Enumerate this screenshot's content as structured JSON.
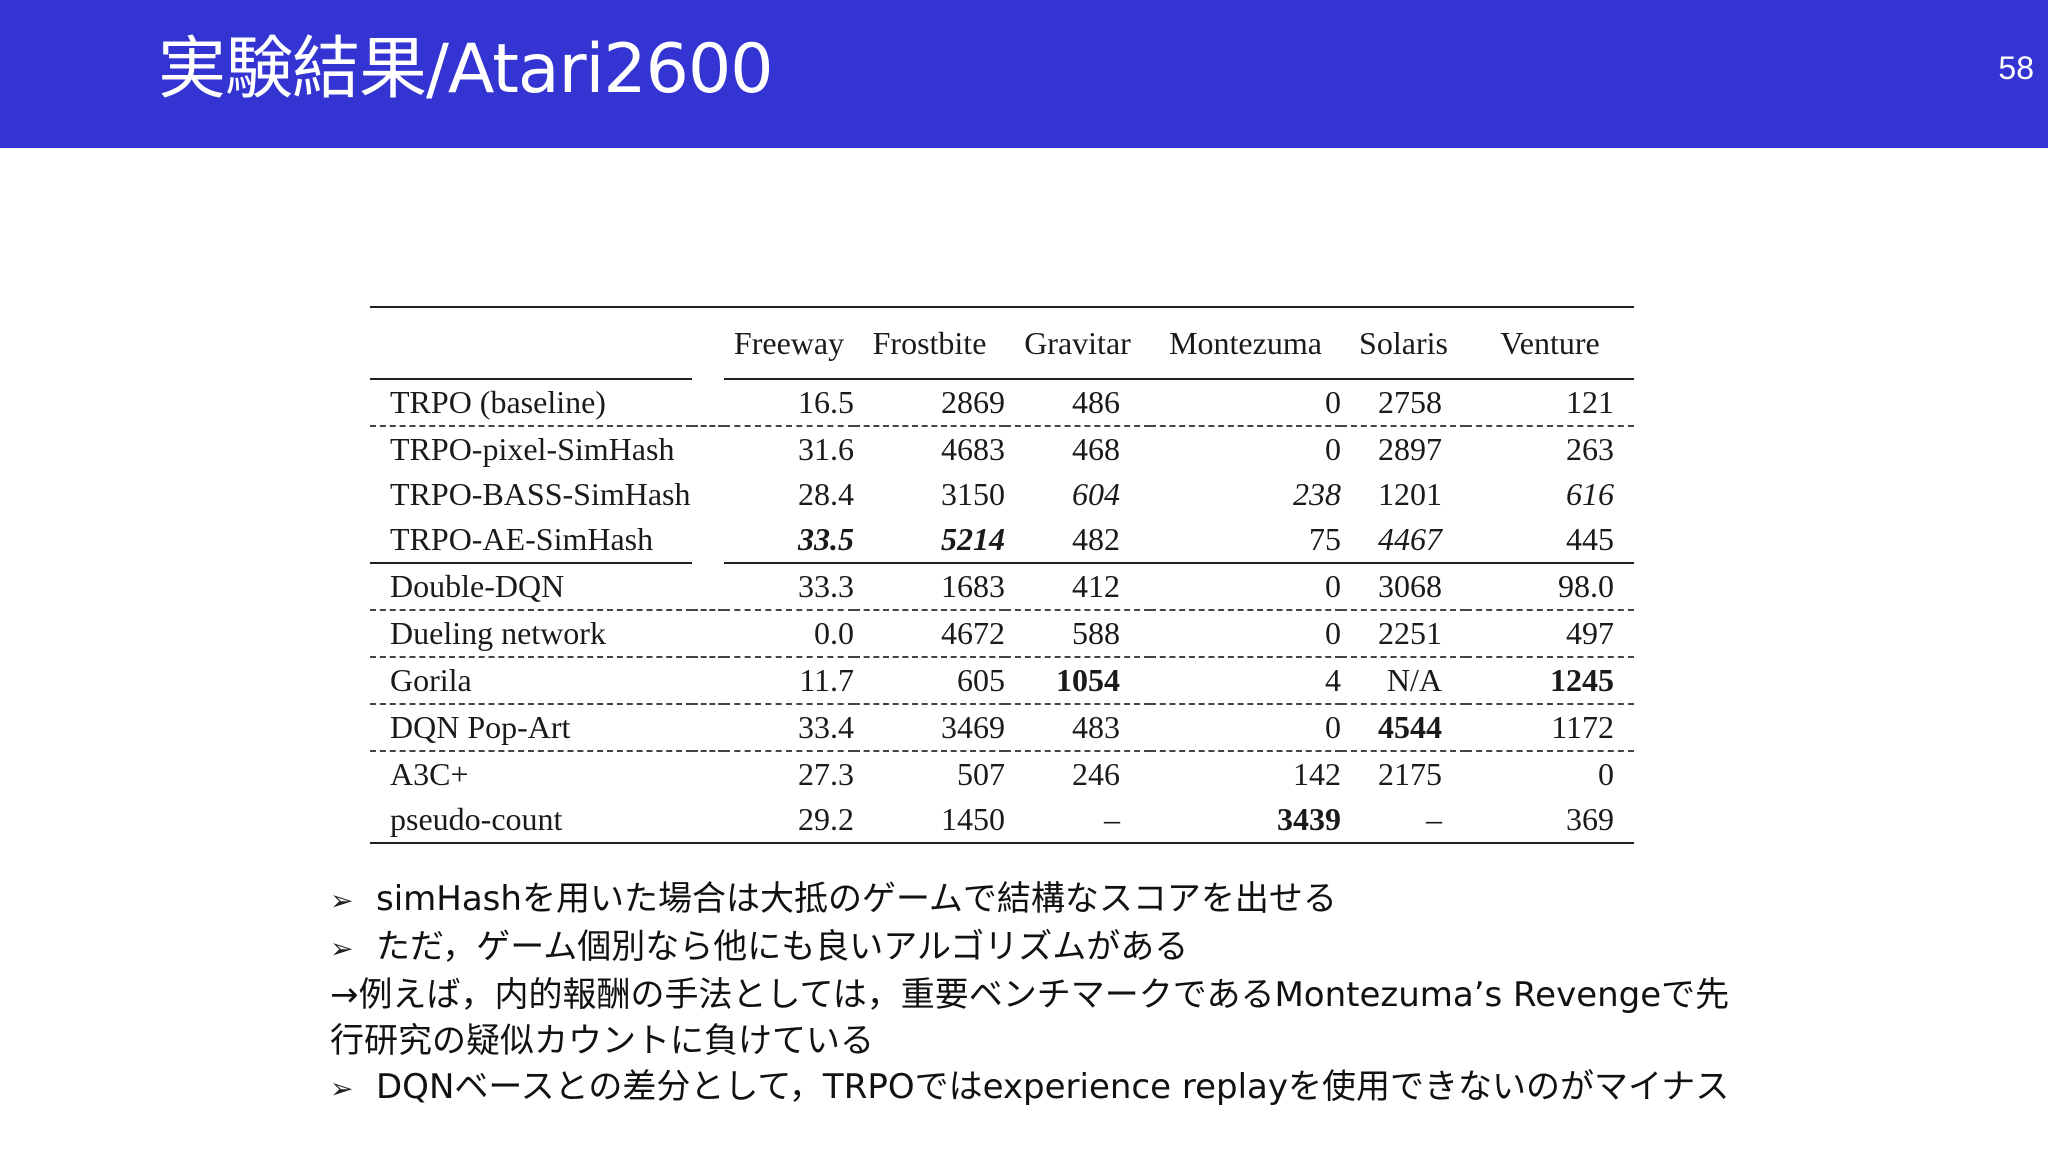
{
  "slide": {
    "title": "実験結果/Atari2600",
    "page_number": "58"
  },
  "table": {
    "headers": [
      "Freeway",
      "Frostbite",
      "Gravitar",
      "Montezuma",
      "Solaris",
      "Venture"
    ],
    "rows": [
      {
        "method": "TRPO (baseline)",
        "values": [
          "16.5",
          "2869",
          "486",
          "0",
          "2758",
          "121"
        ]
      },
      {
        "method": "TRPO-pixel-SimHash",
        "values": [
          "31.6",
          "4683",
          "468",
          "0",
          "2897",
          "263"
        ]
      },
      {
        "method": "TRPO-BASS-SimHash",
        "values": [
          "28.4",
          "3150",
          "604",
          "238",
          "1201",
          "616"
        ]
      },
      {
        "method": "TRPO-AE-SimHash",
        "values": [
          "33.5",
          "5214",
          "482",
          "75",
          "4467",
          "445"
        ]
      },
      {
        "method": "Double-DQN",
        "values": [
          "33.3",
          "1683",
          "412",
          "0",
          "3068",
          "98.0"
        ]
      },
      {
        "method": "Dueling network",
        "values": [
          "0.0",
          "4672",
          "588",
          "0",
          "2251",
          "497"
        ]
      },
      {
        "method": "Gorila",
        "values": [
          "11.7",
          "605",
          "1054",
          "4",
          "N/A",
          "1245"
        ]
      },
      {
        "method": "DQN Pop-Art",
        "values": [
          "33.4",
          "3469",
          "483",
          "0",
          "4544",
          "1172"
        ]
      },
      {
        "method": "A3C+",
        "values": [
          "27.3",
          "507",
          "246",
          "142",
          "2175",
          "0"
        ]
      },
      {
        "method": "pseudo-count",
        "values": [
          "29.2",
          "1450",
          "–",
          "3439",
          "–",
          "369"
        ]
      }
    ]
  },
  "notes": {
    "bullet1": "simHashを用いた場合は大抵のゲームで結構なスコアを出せる",
    "bullet2": "ただ，ゲーム個別なら他にも良いアルゴリズムがある",
    "line3": "→例えば，内的報酬の手法としては，重要ベンチマークであるMontezuma’s Revengeで先",
    "line4": "行研究の疑似カウントに負けている",
    "bullet3": "DQNベースとの差分として，TRPOではexperience replayを使用できないのがマイナス",
    "bullet_marker": "➢"
  }
}
